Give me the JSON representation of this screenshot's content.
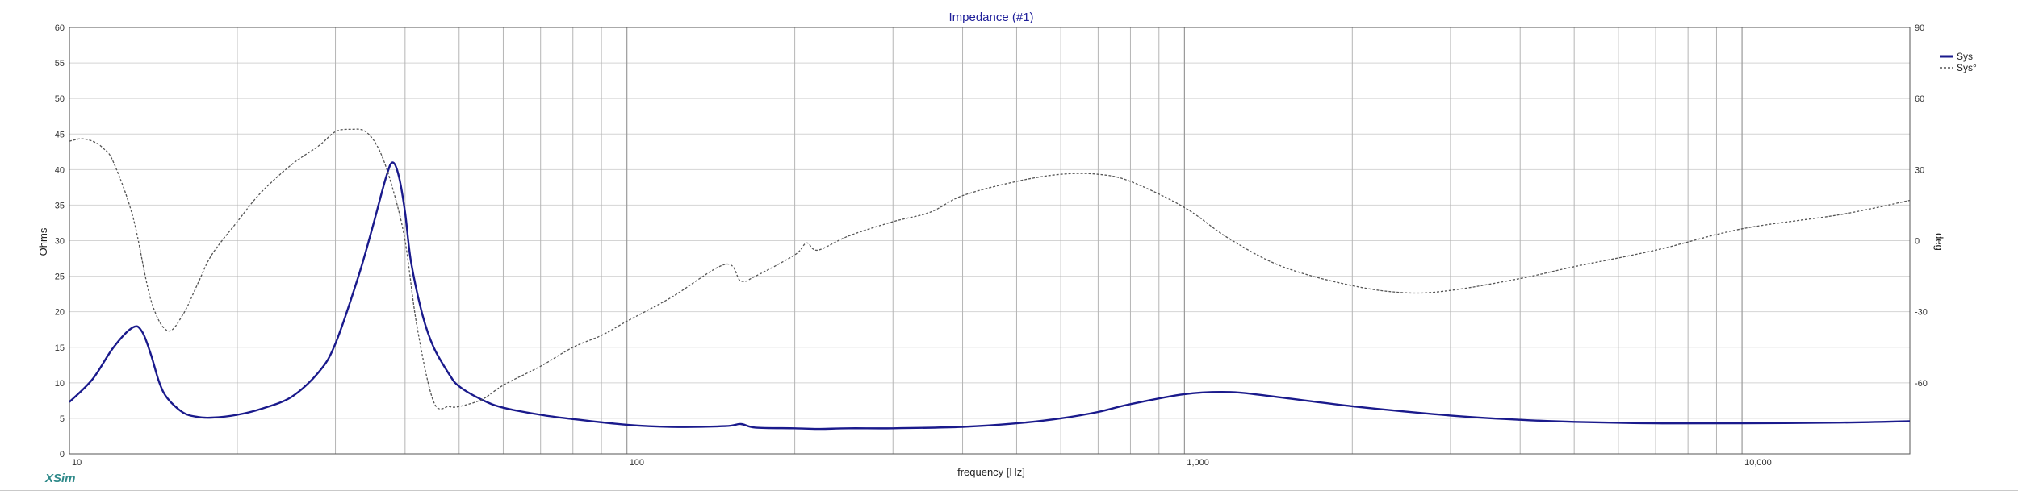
{
  "app": {
    "brand": "XSim"
  },
  "chart_data": {
    "type": "line",
    "title": "Impedance (#1)",
    "xlabel": "frequency [Hz]",
    "ylabel": "Ohms",
    "y2label": "deg",
    "xscale": "log",
    "xlim": [
      10,
      20000
    ],
    "ylim": [
      0,
      60
    ],
    "y2lim": [
      -90,
      90
    ],
    "grid": true,
    "legend_position": "top-right",
    "x_tick_labels": [
      {
        "value": 10,
        "label": "10"
      },
      {
        "value": 100,
        "label": "100"
      },
      {
        "value": 1000,
        "label": "1,000"
      },
      {
        "value": 10000,
        "label": "10,000"
      }
    ],
    "y_tick_labels": [
      "0",
      "5",
      "10",
      "15",
      "20",
      "25",
      "30",
      "35",
      "40",
      "45",
      "50",
      "55",
      "60"
    ],
    "y_tick_values": [
      0,
      5,
      10,
      15,
      20,
      25,
      30,
      35,
      40,
      45,
      50,
      55,
      60
    ],
    "y2_tick_labels": [
      "-60",
      "-30",
      "0",
      "30",
      "60",
      "90"
    ],
    "y2_tick_values": [
      -60,
      -30,
      0,
      30,
      60,
      90
    ],
    "colors": {
      "impedance": "#1a1a8c",
      "phase": "#555555",
      "grid_major": "#9a9a9a",
      "grid_minor": "#d4d4d4"
    },
    "series": [
      {
        "name": "Sys",
        "axis": "left",
        "style": "solid",
        "x": [
          10,
          11,
          12,
          13,
          13.5,
          14,
          14.5,
          15,
          16,
          17,
          18,
          20,
          22,
          25,
          28,
          30,
          33,
          35,
          37,
          38,
          39,
          40,
          41,
          43,
          45,
          48,
          50,
          55,
          60,
          70,
          80,
          100,
          120,
          150,
          160,
          170,
          200,
          220,
          250,
          300,
          400,
          500,
          600,
          700,
          800,
          1000,
          1200,
          1400,
          2000,
          3000,
          4000,
          5000,
          7000,
          10000,
          15000,
          20000
        ],
        "y": [
          7.3,
          10.5,
          15.0,
          17.8,
          17.2,
          14.0,
          10.0,
          7.8,
          5.8,
          5.2,
          5.1,
          5.5,
          6.3,
          8.0,
          11.5,
          15.5,
          25.0,
          32.0,
          39.0,
          41.0,
          39.0,
          34.0,
          27.0,
          19.5,
          15.0,
          11.2,
          9.5,
          7.6,
          6.5,
          5.5,
          4.9,
          4.1,
          3.8,
          3.9,
          4.2,
          3.7,
          3.6,
          3.5,
          3.6,
          3.6,
          3.8,
          4.3,
          5.0,
          5.9,
          7.0,
          8.4,
          8.7,
          8.2,
          6.7,
          5.4,
          4.8,
          4.5,
          4.3,
          4.3,
          4.4,
          4.6
        ]
      },
      {
        "name": "Sys°",
        "axis": "right",
        "style": "dashed",
        "x": [
          10,
          10.5,
          11,
          11.5,
          12,
          13,
          14,
          15,
          16,
          17,
          18,
          20,
          22,
          25,
          28,
          30,
          32,
          34,
          36,
          38,
          40,
          42,
          45,
          48,
          50,
          55,
          60,
          70,
          80,
          90,
          100,
          120,
          150,
          160,
          170,
          200,
          210,
          220,
          250,
          300,
          350,
          400,
          500,
          600,
          700,
          800,
          1000,
          1200,
          1500,
          2000,
          2500,
          3000,
          4000,
          5000,
          7000,
          10000,
          15000,
          20000
        ],
        "y": [
          42,
          43,
          42,
          39,
          33,
          10,
          -25,
          -38,
          -31,
          -18,
          -6,
          8,
          20,
          32,
          40,
          46,
          47,
          46,
          38,
          22,
          0,
          -36,
          -68,
          -70,
          -70,
          -67,
          -61,
          -53,
          -45,
          -40,
          -34,
          -24,
          -10,
          -17,
          -15,
          -6,
          -1,
          -4,
          2,
          8,
          12,
          19,
          25,
          28,
          28,
          25,
          14,
          1,
          -11,
          -19,
          -22,
          -21,
          -16,
          -11,
          -4,
          5,
          11,
          17
        ]
      }
    ]
  }
}
